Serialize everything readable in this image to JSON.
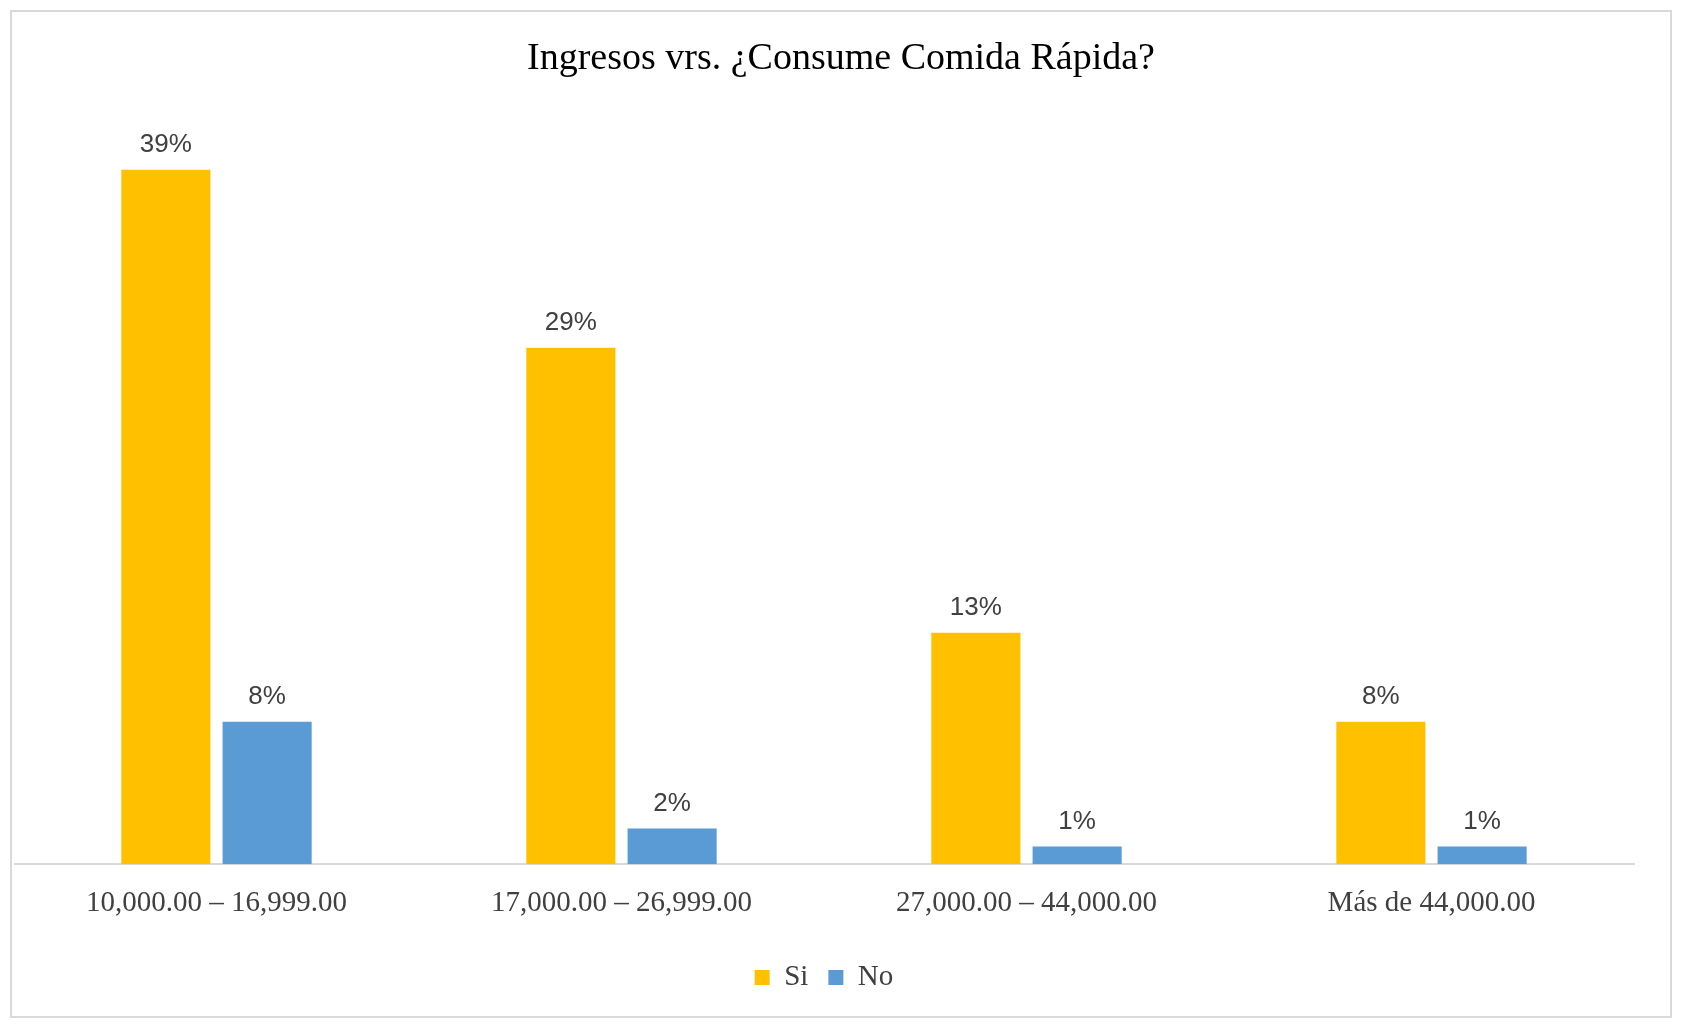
{
  "chart_data": {
    "type": "bar",
    "title": "Ingresos vrs. ¿Consume Comida Rápida?",
    "categories": [
      "10,000.00 – 16,999.00",
      "17,000.00 – 26,999.00",
      "27,000.00 – 44,000.00",
      "Más de 44,000.00"
    ],
    "series": [
      {
        "name": "Si",
        "color": "#ffc000",
        "values": [
          39,
          29,
          13,
          8
        ],
        "value_labels": [
          "39%",
          "29%",
          "13%",
          "8%"
        ]
      },
      {
        "name": "No",
        "color": "#5b9bd5",
        "values": [
          8,
          2,
          1,
          1
        ],
        "value_labels": [
          "8%",
          "2%",
          "1%",
          "1%"
        ]
      }
    ],
    "grid": false,
    "legend": "bottom"
  }
}
